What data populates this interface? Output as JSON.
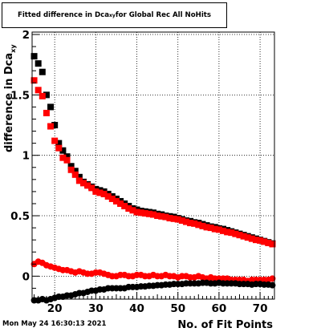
{
  "chart_data": {
    "type": "scatter",
    "title_main": "Fitted difference in Dca",
    "title_sub": "xy",
    "title_tail": " for Global Rec All NoHits",
    "xlabel": "No. of Fit Points",
    "ylabel_main": "difference in Dca",
    "ylabel_sub": "xy",
    "xlim": [
      14.5,
      73.5
    ],
    "ylim": [
      -0.19,
      2.02
    ],
    "xticks": [
      20,
      30,
      40,
      50,
      60,
      70
    ],
    "yticks": [
      0,
      0.5,
      1,
      1.5,
      2
    ],
    "ytick_labels": [
      "0",
      "0.5",
      "1",
      "1.5",
      "2"
    ],
    "grid": true,
    "series": [
      {
        "color": "#000000",
        "marker": "square",
        "points": [
          [
            15,
            1.82
          ],
          [
            16,
            1.76
          ],
          [
            17,
            1.69
          ],
          [
            18,
            1.5
          ],
          [
            19,
            1.4
          ],
          [
            20,
            1.25
          ],
          [
            21,
            1.1
          ],
          [
            22,
            1.04
          ],
          [
            23,
            0.99
          ],
          [
            24,
            0.91
          ],
          [
            25,
            0.87
          ],
          [
            26,
            0.82
          ],
          [
            27,
            0.78
          ],
          [
            28,
            0.76
          ],
          [
            29,
            0.74
          ],
          [
            30,
            0.72
          ],
          [
            31,
            0.71
          ],
          [
            32,
            0.7
          ],
          [
            33,
            0.68
          ],
          [
            34,
            0.66
          ],
          [
            35,
            0.64
          ],
          [
            36,
            0.62
          ],
          [
            37,
            0.6
          ],
          [
            38,
            0.58
          ],
          [
            39,
            0.56
          ],
          [
            40,
            0.55
          ],
          [
            41,
            0.54
          ],
          [
            42,
            0.535
          ],
          [
            43,
            0.53
          ],
          [
            44,
            0.525
          ],
          [
            45,
            0.515
          ],
          [
            46,
            0.51
          ],
          [
            47,
            0.5
          ],
          [
            48,
            0.495
          ],
          [
            49,
            0.49
          ],
          [
            50,
            0.48
          ],
          [
            51,
            0.47
          ],
          [
            52,
            0.46
          ],
          [
            53,
            0.455
          ],
          [
            54,
            0.445
          ],
          [
            55,
            0.44
          ],
          [
            56,
            0.43
          ],
          [
            57,
            0.42
          ],
          [
            58,
            0.41
          ],
          [
            59,
            0.405
          ],
          [
            60,
            0.395
          ],
          [
            61,
            0.39
          ],
          [
            62,
            0.38
          ],
          [
            63,
            0.37
          ],
          [
            64,
            0.36
          ],
          [
            65,
            0.35
          ],
          [
            66,
            0.34
          ],
          [
            67,
            0.33
          ],
          [
            68,
            0.32
          ],
          [
            69,
            0.31
          ],
          [
            70,
            0.3
          ],
          [
            71,
            0.29
          ],
          [
            72,
            0.28
          ],
          [
            73,
            0.27
          ]
        ]
      },
      {
        "color": "#ff0000",
        "marker": "square",
        "points": [
          [
            15,
            1.62
          ],
          [
            16,
            1.54
          ],
          [
            17,
            1.49
          ],
          [
            18,
            1.35
          ],
          [
            19,
            1.24
          ],
          [
            20,
            1.12
          ],
          [
            21,
            1.06
          ],
          [
            22,
            0.98
          ],
          [
            23,
            0.96
          ],
          [
            24,
            0.88
          ],
          [
            25,
            0.84
          ],
          [
            26,
            0.79
          ],
          [
            27,
            0.77
          ],
          [
            28,
            0.75
          ],
          [
            29,
            0.73
          ],
          [
            30,
            0.7
          ],
          [
            31,
            0.69
          ],
          [
            32,
            0.68
          ],
          [
            33,
            0.66
          ],
          [
            34,
            0.64
          ],
          [
            35,
            0.62
          ],
          [
            36,
            0.6
          ],
          [
            37,
            0.58
          ],
          [
            38,
            0.56
          ],
          [
            39,
            0.545
          ],
          [
            40,
            0.53
          ],
          [
            41,
            0.525
          ],
          [
            42,
            0.52
          ],
          [
            43,
            0.515
          ],
          [
            44,
            0.51
          ],
          [
            45,
            0.5
          ],
          [
            46,
            0.495
          ],
          [
            47,
            0.49
          ],
          [
            48,
            0.48
          ],
          [
            49,
            0.475
          ],
          [
            50,
            0.47
          ],
          [
            51,
            0.46
          ],
          [
            52,
            0.45
          ],
          [
            53,
            0.44
          ],
          [
            54,
            0.435
          ],
          [
            55,
            0.425
          ],
          [
            56,
            0.415
          ],
          [
            57,
            0.405
          ],
          [
            58,
            0.4
          ],
          [
            59,
            0.39
          ],
          [
            60,
            0.385
          ],
          [
            61,
            0.375
          ],
          [
            62,
            0.365
          ],
          [
            63,
            0.36
          ],
          [
            64,
            0.35
          ],
          [
            65,
            0.34
          ],
          [
            66,
            0.33
          ],
          [
            67,
            0.32
          ],
          [
            68,
            0.31
          ],
          [
            69,
            0.3
          ],
          [
            70,
            0.295
          ],
          [
            71,
            0.285
          ],
          [
            72,
            0.275
          ],
          [
            73,
            0.265
          ]
        ]
      },
      {
        "color": "#ff0000",
        "marker": "circle",
        "points": [
          [
            15,
            0.1
          ],
          [
            16,
            0.12
          ],
          [
            17,
            0.11
          ],
          [
            18,
            0.09
          ],
          [
            19,
            0.08
          ],
          [
            20,
            0.07
          ],
          [
            21,
            0.06
          ],
          [
            22,
            0.05
          ],
          [
            23,
            0.05
          ],
          [
            24,
            0.04
          ],
          [
            25,
            0.03
          ],
          [
            26,
            0.04
          ],
          [
            27,
            0.03
          ],
          [
            28,
            0.02
          ],
          [
            29,
            0.02
          ],
          [
            30,
            0.03
          ],
          [
            31,
            0.03
          ],
          [
            32,
            0.02
          ],
          [
            33,
            0.01
          ],
          [
            34,
            0.0
          ],
          [
            35,
            0.0
          ],
          [
            36,
            0.01
          ],
          [
            37,
            0.01
          ],
          [
            38,
            0.0
          ],
          [
            39,
            0.0
          ],
          [
            40,
            0.01
          ],
          [
            41,
            0.01
          ],
          [
            42,
            0.0
          ],
          [
            43,
            0.0
          ],
          [
            44,
            0.01
          ],
          [
            45,
            0.0
          ],
          [
            46,
            0.0
          ],
          [
            47,
            0.01
          ],
          [
            48,
            0.0
          ],
          [
            49,
            0.0
          ],
          [
            50,
            -0.01
          ],
          [
            51,
            0.0
          ],
          [
            52,
            0.0
          ],
          [
            53,
            -0.01
          ],
          [
            54,
            -0.01
          ],
          [
            55,
            0.0
          ],
          [
            56,
            -0.01
          ],
          [
            57,
            -0.02
          ],
          [
            58,
            -0.01
          ],
          [
            59,
            -0.02
          ],
          [
            60,
            -0.02
          ],
          [
            61,
            -0.02
          ],
          [
            62,
            -0.02
          ],
          [
            63,
            -0.03
          ],
          [
            64,
            -0.03
          ],
          [
            65,
            -0.03
          ],
          [
            66,
            -0.03
          ],
          [
            67,
            -0.04
          ],
          [
            68,
            -0.03
          ],
          [
            69,
            -0.03
          ],
          [
            70,
            -0.03
          ],
          [
            71,
            -0.03
          ],
          [
            72,
            -0.03
          ],
          [
            73,
            -0.02
          ]
        ]
      },
      {
        "color": "#000000",
        "marker": "circle",
        "points": [
          [
            15,
            -0.2
          ],
          [
            16,
            -0.2
          ],
          [
            17,
            -0.19
          ],
          [
            18,
            -0.2
          ],
          [
            19,
            -0.19
          ],
          [
            20,
            -0.18
          ],
          [
            21,
            -0.17
          ],
          [
            22,
            -0.17
          ],
          [
            23,
            -0.16
          ],
          [
            24,
            -0.16
          ],
          [
            25,
            -0.15
          ],
          [
            26,
            -0.14
          ],
          [
            27,
            -0.14
          ],
          [
            28,
            -0.13
          ],
          [
            29,
            -0.12
          ],
          [
            30,
            -0.12
          ],
          [
            31,
            -0.11
          ],
          [
            32,
            -0.11
          ],
          [
            33,
            -0.1
          ],
          [
            34,
            -0.1
          ],
          [
            35,
            -0.1
          ],
          [
            36,
            -0.1
          ],
          [
            37,
            -0.1
          ],
          [
            38,
            -0.09
          ],
          [
            39,
            -0.09
          ],
          [
            40,
            -0.09
          ],
          [
            41,
            -0.085
          ],
          [
            42,
            -0.085
          ],
          [
            43,
            -0.08
          ],
          [
            44,
            -0.08
          ],
          [
            45,
            -0.075
          ],
          [
            46,
            -0.075
          ],
          [
            47,
            -0.07
          ],
          [
            48,
            -0.07
          ],
          [
            49,
            -0.065
          ],
          [
            50,
            -0.065
          ],
          [
            51,
            -0.065
          ],
          [
            52,
            -0.06
          ],
          [
            53,
            -0.06
          ],
          [
            54,
            -0.06
          ],
          [
            55,
            -0.06
          ],
          [
            56,
            -0.055
          ],
          [
            57,
            -0.055
          ],
          [
            58,
            -0.06
          ],
          [
            59,
            -0.06
          ],
          [
            60,
            -0.055
          ],
          [
            61,
            -0.06
          ],
          [
            62,
            -0.06
          ],
          [
            63,
            -0.06
          ],
          [
            64,
            -0.06
          ],
          [
            65,
            -0.065
          ],
          [
            66,
            -0.065
          ],
          [
            67,
            -0.065
          ],
          [
            68,
            -0.07
          ],
          [
            69,
            -0.065
          ],
          [
            70,
            -0.065
          ],
          [
            71,
            -0.07
          ],
          [
            72,
            -0.07
          ],
          [
            73,
            -0.075
          ]
        ]
      }
    ]
  },
  "timestamp": "Mon May 24 16:30:13 2021"
}
